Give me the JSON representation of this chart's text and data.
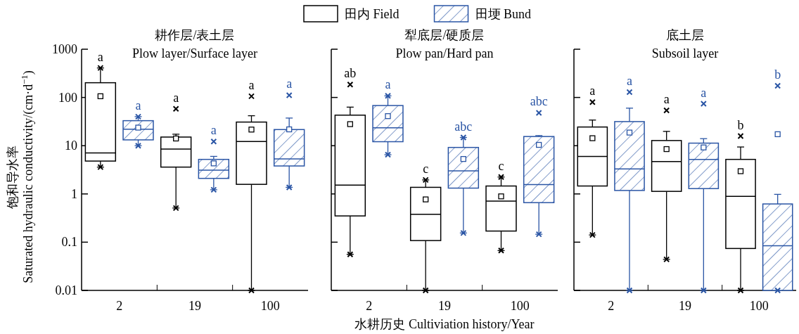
{
  "chart_data": [
    {
      "type": "box",
      "title": "耕作层/表土层",
      "subtitle": "Plow layer/Surface layer",
      "ylabel": "饱和导水率\nSaturated hydraulic conductivity/(cm·d$^{−1}$)",
      "categories": [
        "2",
        "19",
        "100"
      ],
      "log": true,
      "ylim": [
        0.01,
        1000
      ],
      "yticks": [
        0.01,
        0.1,
        1,
        10,
        100,
        1000
      ],
      "series": [
        {
          "color": "#000000",
          "boxes": [
            {
              "low": 3.6,
              "q1": 4.8,
              "median": 7.1,
              "q3": 202,
              "high": 409,
              "mean": 106,
              "outliers": [
                409,
                3.6
              ]
            },
            {
              "low": 0.51,
              "q1": 3.6,
              "median": 8.5,
              "q3": 15.1,
              "high": 17.3,
              "mean": 14.1,
              "outliers": [
                58,
                0.51
              ]
            },
            {
              "low": 0.01,
              "q1": 1.58,
              "median": 12.2,
              "q3": 30.9,
              "high": 41.8,
              "mean": 21.6,
              "outliers": [
                106,
                0.01
              ]
            }
          ]
        },
        {
          "color": "#2a55a5",
          "boxes": [
            {
              "low": 10,
              "q1": 13.2,
              "median": 22,
              "q3": 33,
              "high": 40,
              "mean": 23.7,
              "outliers": [
                40,
                10
              ]
            },
            {
              "low": 1.22,
              "q1": 2.1,
              "median": 3.1,
              "q3": 5.2,
              "high": 6.0,
              "mean": 4.3,
              "outliers": [
                12.2,
                1.22
              ]
            },
            {
              "low": 1.37,
              "q1": 3.8,
              "median": 5.3,
              "q3": 21.6,
              "high": 37.4,
              "mean": 21.8,
              "outliers": [
                111,
                1.37
              ]
            }
          ]
        }
      ],
      "annotations": [
        "a",
        "a",
        "a",
        "a",
        "a",
        "a"
      ]
    },
    {
      "type": "box",
      "title": "犁底层/硬质层",
      "subtitle": "Plow pan/Hard pan",
      "xlabel": "水耕历史 Cultiviation history/Year",
      "categories": [
        "2",
        "19",
        "100"
      ],
      "log": true,
      "ylim": [
        0.01,
        1000
      ],
      "yticks": [
        0.01,
        0.1,
        1,
        10,
        100,
        1000
      ],
      "tick_labels": "x",
      "legend": "top",
      "series": [
        {
          "name": "田内 Field",
          "color": "#000000",
          "boxes": [
            {
              "low": 0.056,
              "q1": 0.35,
              "median": 1.53,
              "q3": 43,
              "high": 63,
              "mean": 28,
              "outliers": [
                185,
                0.056
              ]
            },
            {
              "low": 0.01,
              "q1": 0.108,
              "median": 0.38,
              "q3": 1.37,
              "high": 1.95,
              "mean": 0.77,
              "outliers": [
                1.95,
                0.01
              ]
            },
            {
              "low": 0.067,
              "q1": 0.17,
              "median": 0.71,
              "q3": 1.46,
              "high": 2.24,
              "mean": 0.89,
              "outliers": [
                2.24,
                0.067
              ]
            }
          ]
        },
        {
          "name": "田埂 Bund",
          "color": "#2a55a5",
          "boxes": [
            {
              "low": 6.5,
              "q1": 12.1,
              "median": 23.4,
              "q3": 68,
              "high": 108,
              "mean": 41,
              "outliers": [
                108,
                6.5
              ]
            },
            {
              "low": 0.155,
              "q1": 1.32,
              "median": 3.0,
              "q3": 9.2,
              "high": 14.8,
              "mean": 5.3,
              "outliers": [
                14.8,
                0.155
              ]
            },
            {
              "low": 0.146,
              "q1": 0.66,
              "median": 1.56,
              "q3": 15.5,
              "high": 16.2,
              "mean": 10.4,
              "outliers": [
                48,
                0.146
              ]
            }
          ]
        }
      ],
      "annotations": [
        "ab",
        "a",
        "c",
        "abc",
        "c",
        "abc"
      ]
    },
    {
      "type": "box",
      "title": "底土层",
      "subtitle": "Subsoil layer",
      "categories": [
        "2",
        "19",
        "100"
      ],
      "log": true,
      "ylim": [
        0.01,
        1000
      ],
      "yticks": [
        0.01,
        0.1,
        1,
        10,
        100,
        1000
      ],
      "tick_labels": "x",
      "series": [
        {
          "color": "#000000",
          "boxes": [
            {
              "low": 0.141,
              "q1": 1.46,
              "median": 6.0,
              "q3": 24.4,
              "high": 34,
              "mean": 14.3,
              "outliers": [
                80,
                0.141
              ]
            },
            {
              "low": 0.044,
              "q1": 1.13,
              "median": 4.7,
              "q3": 12.8,
              "high": 19.8,
              "mean": 8.5,
              "outliers": [
                54,
                0.044
              ]
            },
            {
              "low": 0.01,
              "q1": 0.074,
              "median": 0.89,
              "q3": 5.2,
              "high": 9.4,
              "mean": 2.96,
              "outliers": [
                15.8,
                0.01
              ]
            }
          ]
        },
        {
          "color": "#2a55a5",
          "boxes": [
            {
              "low": 0.01,
              "q1": 1.18,
              "median": 3.3,
              "q3": 31.6,
              "high": 60,
              "mean": 18.7,
              "outliers": [
                129,
                0.01
              ]
            },
            {
              "low": 0.01,
              "q1": 1.29,
              "median": 5.2,
              "q3": 11.3,
              "high": 14,
              "mean": 9.2,
              "outliers": [
                74,
                0.01
              ]
            },
            {
              "low": 0.01,
              "q1": 0.01,
              "median": 0.084,
              "q3": 0.62,
              "high": 0.98,
              "mean": 17.3,
              "outliers": [
                175,
                0.01
              ]
            }
          ]
        }
      ],
      "annotations": [
        "a",
        "a",
        "a",
        "a",
        "b",
        "b"
      ]
    }
  ]
}
